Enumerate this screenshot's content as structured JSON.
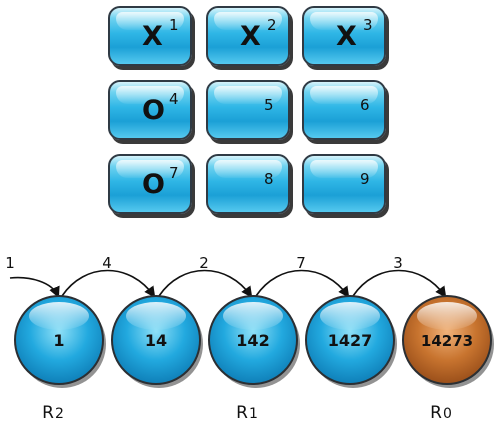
{
  "board": {
    "cells": [
      {
        "mark": "X",
        "index": "1"
      },
      {
        "mark": "X",
        "index": "2"
      },
      {
        "mark": "X",
        "index": "3"
      },
      {
        "mark": "O",
        "index": "4"
      },
      {
        "mark": "",
        "index": "5"
      },
      {
        "mark": "",
        "index": "6"
      },
      {
        "mark": "O",
        "index": "7"
      },
      {
        "mark": "",
        "index": "8"
      },
      {
        "mark": "",
        "index": "9"
      }
    ]
  },
  "chain": {
    "inputs": [
      "1",
      "4",
      "2",
      "7",
      "3"
    ],
    "nodes": [
      "1",
      "14",
      "142",
      "1427",
      "14273"
    ],
    "labels": [
      {
        "letter": "R",
        "sub": "2"
      },
      {
        "letter": "R",
        "sub": "1"
      },
      {
        "letter": "R",
        "sub": "0"
      }
    ],
    "colors": {
      "node": "#1ea7dc",
      "final_node": "#c06a2a",
      "outline": "#2b2f33"
    }
  }
}
